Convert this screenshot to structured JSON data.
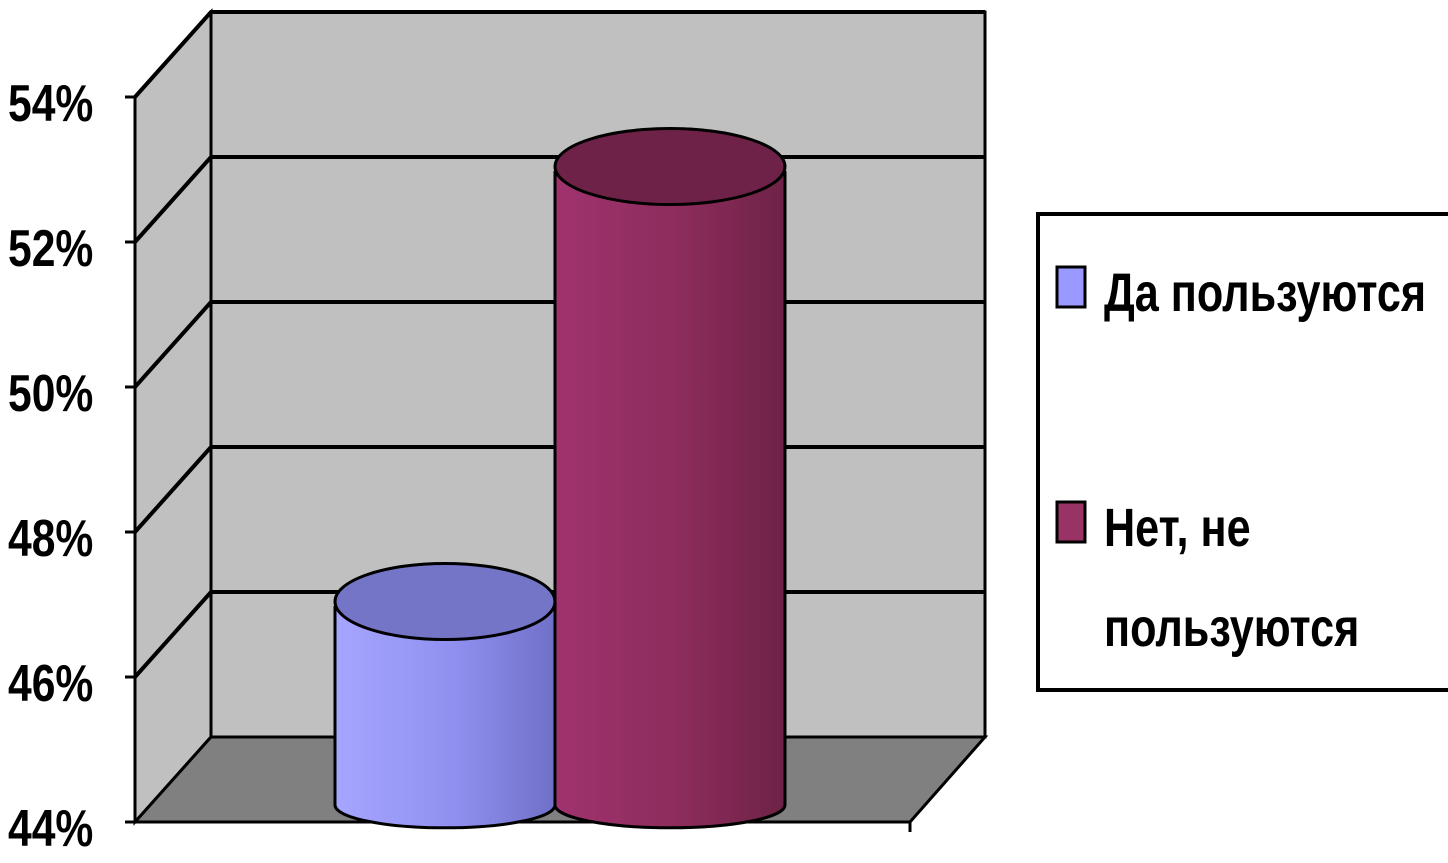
{
  "chart_data": {
    "type": "bar",
    "style": "3d-cylinder",
    "categories": [
      ""
    ],
    "series": [
      {
        "name": "Да пользуются",
        "values": [
          47
        ],
        "color": "#9999ff"
      },
      {
        "name": "Нет, не пользуются",
        "values": [
          53
        ],
        "color": "#993366"
      }
    ],
    "legend_labels": [
      [
        "Да пользуются"
      ],
      [
        "Нет, не",
        "пользуются"
      ]
    ],
    "ylim": [
      44,
      54
    ],
    "yticks": [
      "44%",
      "46%",
      "48%",
      "50%",
      "52%",
      "54%"
    ],
    "grid": true,
    "legend_position": "right",
    "colors": {
      "back_wall": "#c0c0c0",
      "floor": "#808080",
      "gridline": "#000000"
    }
  }
}
